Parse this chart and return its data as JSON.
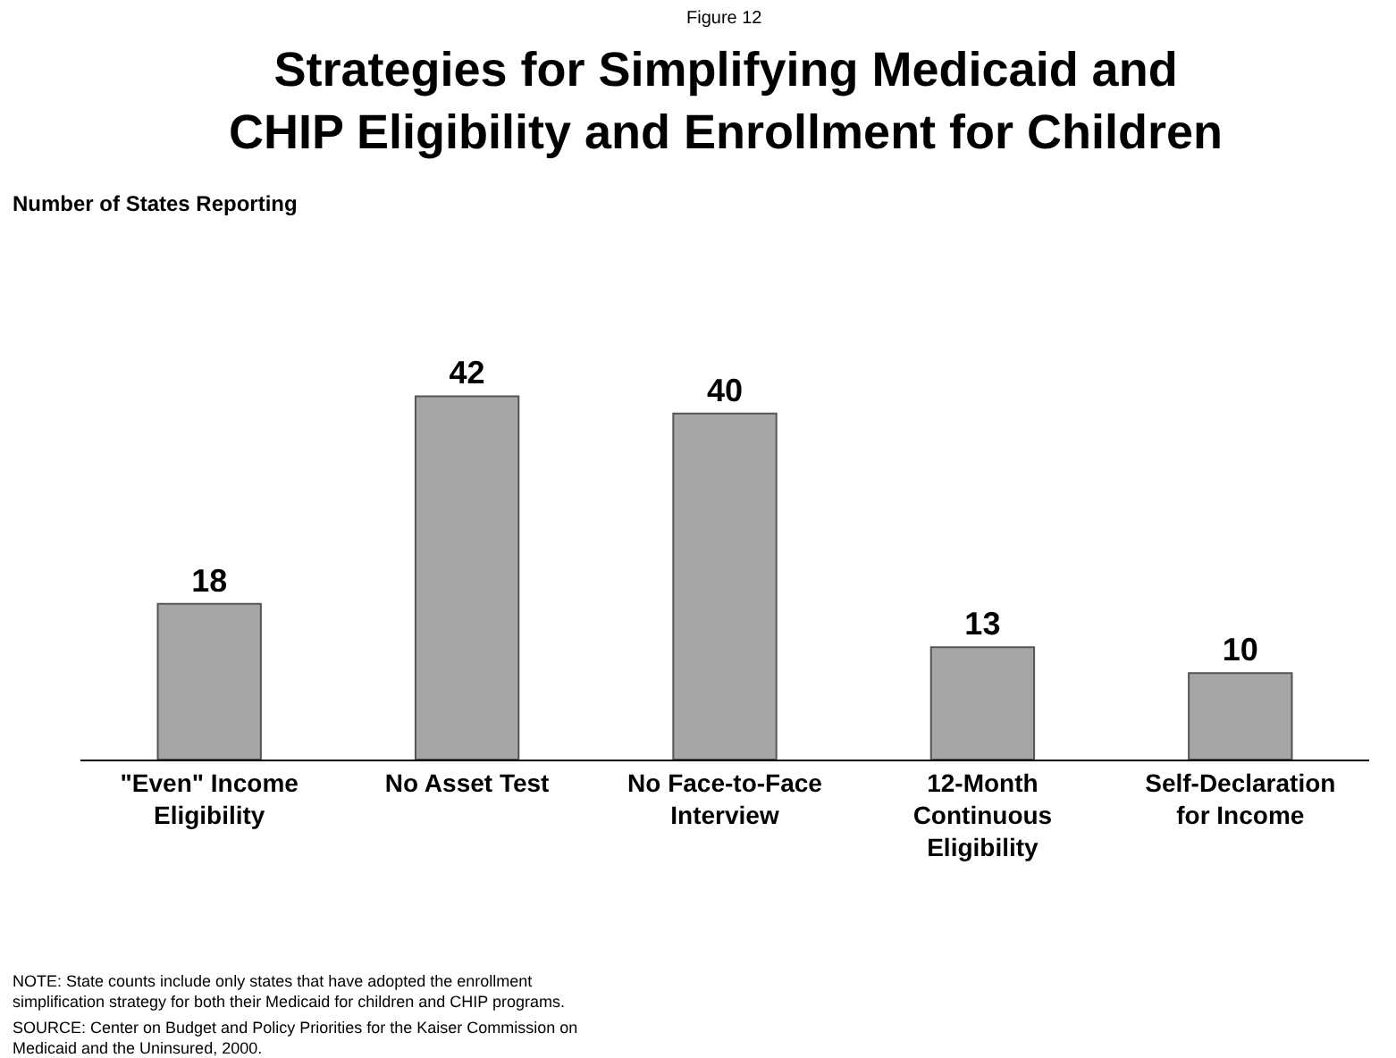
{
  "chart_data": {
    "type": "bar",
    "title": "Strategies for Simplifying Medicaid and CHIP Eligibility and Enrollment for Children",
    "categories": [
      "\"Even\" Income Eligibility",
      "No Asset Test",
      "No Face-to-Face Interview",
      "12-Month Continuous Eligibility",
      "Self-Declaration for Income"
    ],
    "values": [
      18,
      42,
      40,
      13,
      10
    ],
    "color": "#a6a6a6",
    "data_labels": true,
    "grid": false,
    "annotations": [
      "Figure 12",
      "Number of States Reporting",
      "NOTE: State counts include only states that have adopted the enrollment simplification strategy for both their Medicaid for children and CHIP programs.",
      "SOURCE: Center on Budget and Policy Priorities for the Kaiser Commission on Medicaid and the Uninsured, 2000."
    ]
  }
}
